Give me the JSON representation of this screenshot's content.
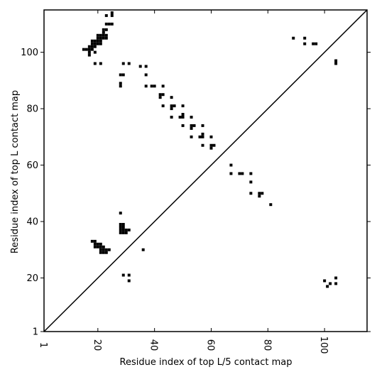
{
  "chart_data": {
    "type": "scatter",
    "marker": "square",
    "xlabel": "Residue index of top L/5 contact map",
    "ylabel": "Residue index of top L contact map",
    "xlim": [
      1,
      115
    ],
    "ylim": [
      1,
      115
    ],
    "xticks": [
      1,
      20,
      40,
      60,
      80,
      100
    ],
    "yticks": [
      1,
      20,
      40,
      60,
      80,
      100
    ],
    "grid": false,
    "diagonal": true,
    "upper_points": [
      [
        23,
        113
      ],
      [
        25,
        113
      ],
      [
        25,
        114
      ],
      [
        23,
        110
      ],
      [
        24,
        110
      ],
      [
        25,
        110
      ],
      [
        22,
        108
      ],
      [
        23,
        108
      ],
      [
        22,
        107
      ],
      [
        20,
        106
      ],
      [
        21,
        106
      ],
      [
        22,
        106
      ],
      [
        23,
        106
      ],
      [
        20,
        105
      ],
      [
        21,
        105
      ],
      [
        22,
        105
      ],
      [
        23,
        105
      ],
      [
        18,
        104
      ],
      [
        19,
        104
      ],
      [
        20,
        104
      ],
      [
        21,
        104
      ],
      [
        18,
        103
      ],
      [
        19,
        103
      ],
      [
        20,
        103
      ],
      [
        21,
        103
      ],
      [
        17,
        102
      ],
      [
        18,
        102
      ],
      [
        19,
        102
      ],
      [
        15,
        101
      ],
      [
        16,
        101
      ],
      [
        17,
        101
      ],
      [
        18,
        101
      ],
      [
        17,
        100
      ],
      [
        19,
        100
      ],
      [
        17,
        99
      ],
      [
        19,
        96
      ],
      [
        21,
        96
      ],
      [
        28,
        92
      ],
      [
        29,
        92
      ],
      [
        29,
        96
      ],
      [
        31,
        96
      ],
      [
        28,
        89
      ],
      [
        28,
        88
      ],
      [
        35,
        95
      ],
      [
        37,
        95
      ],
      [
        37,
        92
      ],
      [
        37,
        88
      ],
      [
        39,
        88
      ],
      [
        40,
        88
      ],
      [
        43,
        88
      ],
      [
        42,
        85
      ],
      [
        43,
        85
      ],
      [
        42,
        84
      ],
      [
        46,
        84
      ],
      [
        43,
        81
      ],
      [
        46,
        81
      ],
      [
        47,
        81
      ],
      [
        46,
        80
      ],
      [
        50,
        81
      ],
      [
        46,
        77
      ],
      [
        49,
        77
      ],
      [
        50,
        77
      ],
      [
        50,
        78
      ],
      [
        53,
        77
      ],
      [
        50,
        74
      ],
      [
        53,
        74
      ],
      [
        54,
        74
      ],
      [
        53,
        73
      ],
      [
        57,
        74
      ],
      [
        53,
        70
      ],
      [
        56,
        70
      ],
      [
        57,
        70
      ],
      [
        57,
        71
      ],
      [
        60,
        70
      ],
      [
        57,
        67
      ],
      [
        60,
        67
      ],
      [
        61,
        67
      ],
      [
        60,
        66
      ],
      [
        67,
        60
      ],
      [
        67,
        57
      ],
      [
        70,
        57
      ],
      [
        71,
        57
      ],
      [
        74,
        57
      ],
      [
        74,
        54
      ],
      [
        74,
        50
      ],
      [
        77,
        50
      ],
      [
        78,
        50
      ],
      [
        77,
        49
      ],
      [
        81,
        46
      ],
      [
        89,
        105
      ],
      [
        93,
        105
      ],
      [
        93,
        103
      ],
      [
        96,
        103
      ],
      [
        97,
        103
      ],
      [
        104,
        97
      ],
      [
        104,
        96
      ]
    ],
    "lower_points": [
      [
        28,
        43
      ],
      [
        28,
        39
      ],
      [
        29,
        39
      ],
      [
        28,
        38
      ],
      [
        29,
        38
      ],
      [
        28,
        37
      ],
      [
        29,
        37
      ],
      [
        30,
        37
      ],
      [
        31,
        37
      ],
      [
        28,
        36
      ],
      [
        29,
        36
      ],
      [
        30,
        36
      ],
      [
        18,
        33
      ],
      [
        19,
        33
      ],
      [
        19,
        32
      ],
      [
        20,
        32
      ],
      [
        21,
        32
      ],
      [
        19,
        31
      ],
      [
        20,
        31
      ],
      [
        21,
        31
      ],
      [
        22,
        31
      ],
      [
        21,
        30
      ],
      [
        22,
        30
      ],
      [
        23,
        30
      ],
      [
        24,
        30
      ],
      [
        21,
        29
      ],
      [
        22,
        29
      ],
      [
        23,
        29
      ],
      [
        36,
        30
      ],
      [
        29,
        21
      ],
      [
        31,
        21
      ],
      [
        31,
        19
      ],
      [
        100,
        19
      ],
      [
        101,
        17
      ],
      [
        102,
        18
      ],
      [
        104,
        18
      ],
      [
        104,
        20
      ]
    ]
  }
}
